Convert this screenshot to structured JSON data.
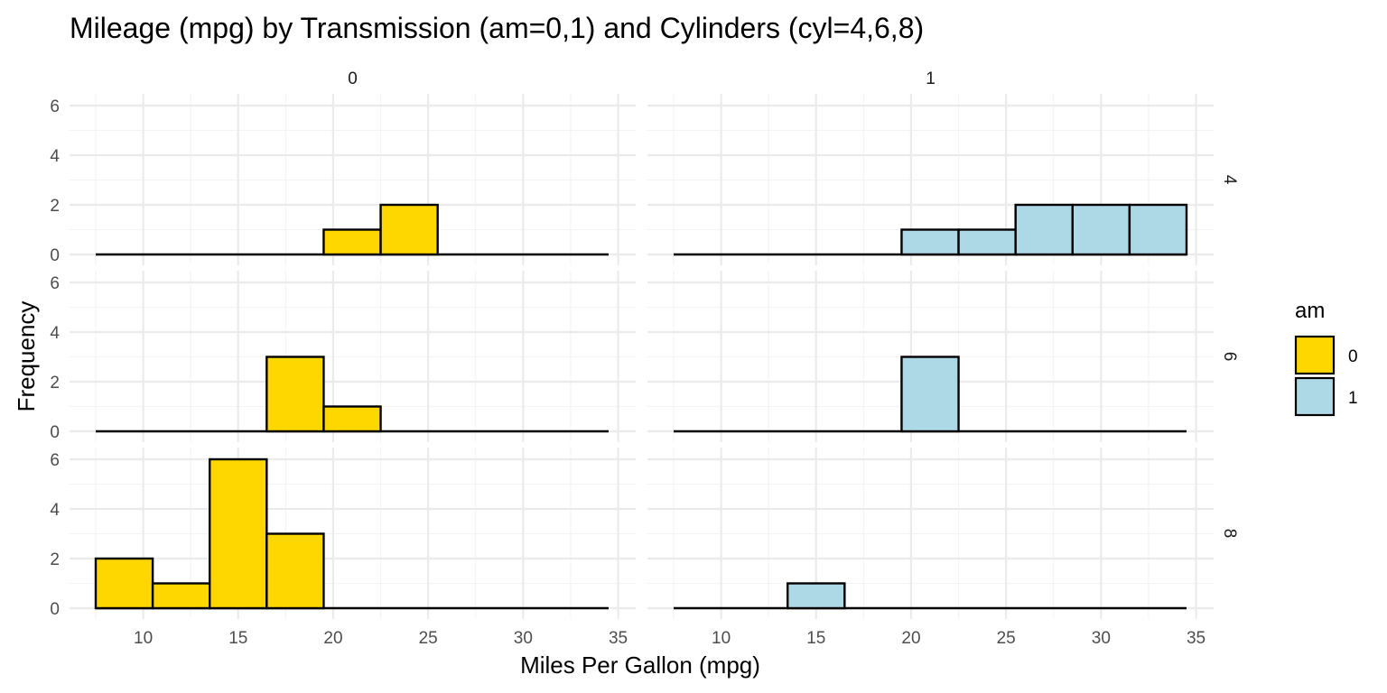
{
  "chart_data": {
    "type": "bar",
    "title": "Mileage (mpg) by Transmission (am=0,1) and Cylinders (cyl=4,6,8)",
    "xlabel": "Miles Per Gallon (mpg)",
    "ylabel": "Frequency",
    "xlim": [
      7.5,
      34.5
    ],
    "ylim": [
      0,
      6
    ],
    "xticks": [
      10,
      15,
      20,
      25,
      30,
      35
    ],
    "yticks": [
      0,
      2,
      4,
      6
    ],
    "bin_width": 3,
    "bin_edges": [
      7.5,
      10.5,
      13.5,
      16.5,
      19.5,
      22.5,
      25.5,
      28.5,
      31.5,
      34.5
    ],
    "grid": true,
    "legend": {
      "title": "am",
      "position": "right",
      "entries": [
        {
          "label": "0",
          "color": "#FFD700"
        },
        {
          "label": "1",
          "color": "#ADD8E6"
        }
      ]
    },
    "facet_columns": [
      "0",
      "1"
    ],
    "facet_rows": [
      "4",
      "6",
      "8"
    ],
    "panels": [
      {
        "am": "0",
        "cyl": "4",
        "counts": [
          0,
          0,
          0,
          0,
          1,
          2,
          0,
          0,
          0
        ]
      },
      {
        "am": "1",
        "cyl": "4",
        "counts": [
          0,
          0,
          0,
          0,
          1,
          1,
          2,
          2,
          2
        ]
      },
      {
        "am": "0",
        "cyl": "6",
        "counts": [
          0,
          0,
          0,
          3,
          1,
          0,
          0,
          0,
          0
        ]
      },
      {
        "am": "1",
        "cyl": "6",
        "counts": [
          0,
          0,
          0,
          0,
          3,
          0,
          0,
          0,
          0
        ]
      },
      {
        "am": "0",
        "cyl": "8",
        "counts": [
          2,
          1,
          6,
          3,
          0,
          0,
          0,
          0,
          0
        ]
      },
      {
        "am": "1",
        "cyl": "8",
        "counts": [
          0,
          0,
          1,
          0,
          0,
          0,
          0,
          0,
          0
        ]
      }
    ]
  }
}
